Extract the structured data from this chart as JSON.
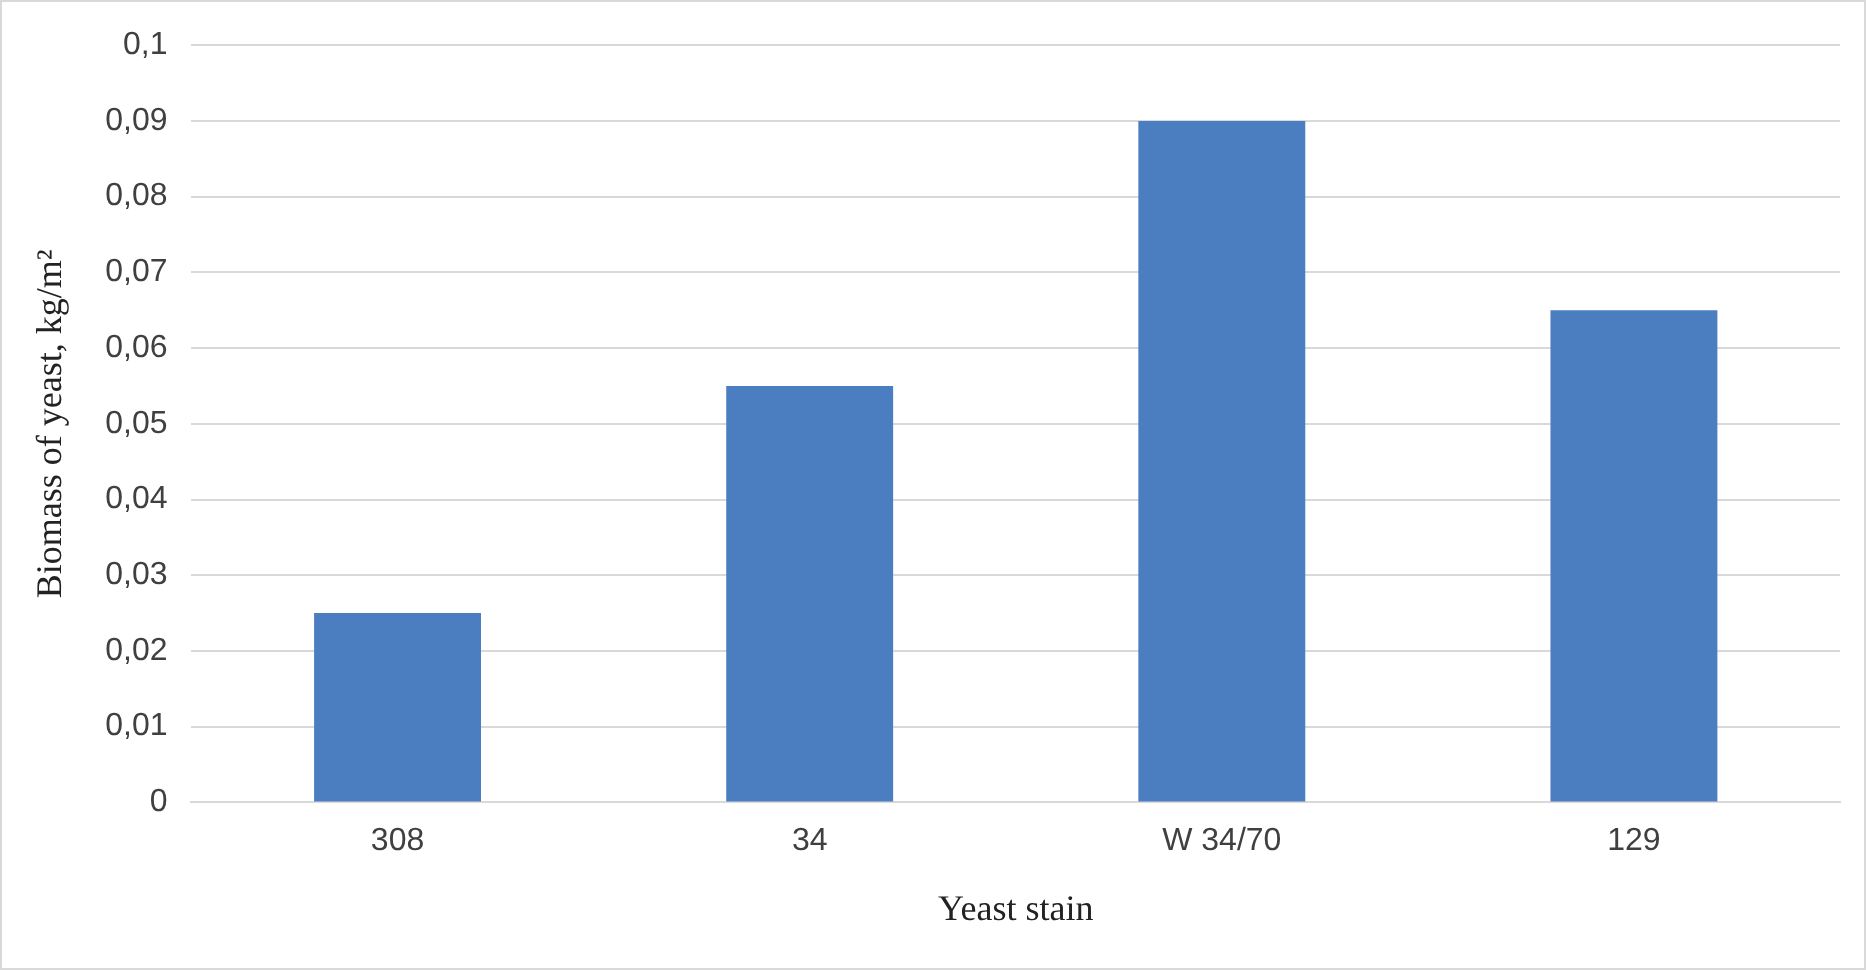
{
  "chart_data": {
    "type": "bar",
    "xlabel": "Yeast stain",
    "ylabel": "Biomass of yeast, kg/m²",
    "categories": [
      "308",
      "34",
      "W 34/70",
      "129"
    ],
    "values": [
      0.025,
      0.055,
      0.09,
      0.065
    ],
    "color": "#4a7ec0",
    "ylim": [
      0,
      0.1
    ],
    "yticks": [
      {
        "value": 0,
        "label": "0"
      },
      {
        "value": 0.01,
        "label": "0,01"
      },
      {
        "value": 0.02,
        "label": "0,02"
      },
      {
        "value": 0.03,
        "label": "0,03"
      },
      {
        "value": 0.04,
        "label": "0,04"
      },
      {
        "value": 0.05,
        "label": "0,05"
      },
      {
        "value": 0.06,
        "label": "0,06"
      },
      {
        "value": 0.07,
        "label": "0,07"
      },
      {
        "value": 0.08,
        "label": "0,08"
      },
      {
        "value": 0.09,
        "label": "0,09"
      },
      {
        "value": 0.1,
        "label": "0,1"
      }
    ],
    "grid": "y",
    "legend": false
  }
}
